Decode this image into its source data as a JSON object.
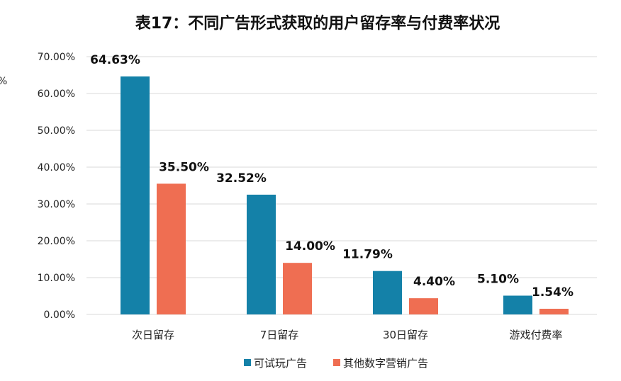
{
  "chart_data": {
    "type": "bar",
    "title": "表17：不同广告形式获取的用户留存率与付费率状况",
    "categories": [
      "次日留存",
      "7日留存",
      "30日留存",
      "游戏付费率"
    ],
    "series": [
      {
        "name": "可试玩广告",
        "color": "#1481A8",
        "values": [
          64.63,
          32.52,
          11.79,
          5.1
        ],
        "labels": [
          "64.63%",
          "32.52%",
          "11.79%",
          "5.10%"
        ]
      },
      {
        "name": "其他数字营销广告",
        "color": "#EF6E52",
        "values": [
          35.5,
          14.0,
          4.4,
          1.54
        ],
        "labels": [
          "35.50%",
          "14.00%",
          "4.40%",
          "1.54%"
        ]
      }
    ],
    "yticks": [
      0,
      10,
      20,
      30,
      40,
      50,
      60,
      70
    ],
    "ytick_labels": [
      "0.00%",
      "10.00%",
      "20.00%",
      "30.00%",
      "40.00%",
      "50.00%",
      "60.00%",
      "70.00%"
    ],
    "ylim": [
      0,
      70
    ],
    "grid": true,
    "legend": "bottom-center",
    "xlabel": "",
    "ylabel": "",
    "edge_glyph": "%",
    "gridline_color": "#D9D9D9"
  }
}
